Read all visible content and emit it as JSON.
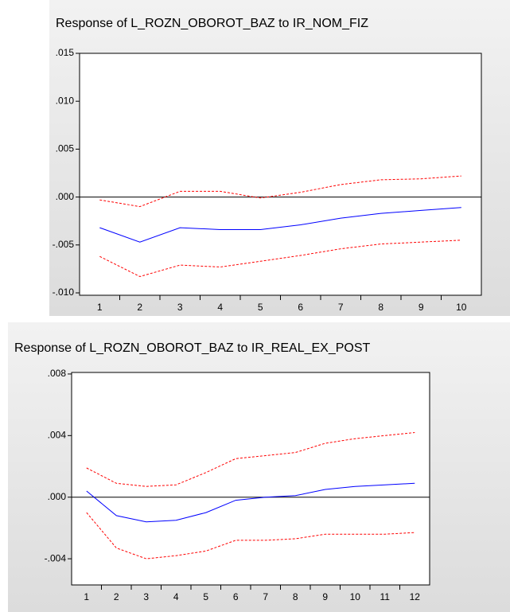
{
  "chart_data": [
    {
      "type": "line",
      "title": "Response of L_ROZN_OBOROT_BAZ to IR_NOM_FIZ",
      "categories": [
        "1",
        "2",
        "3",
        "4",
        "5",
        "6",
        "7",
        "8",
        "9",
        "10"
      ],
      "series": [
        {
          "color": "#ff0000",
          "style": "dashed",
          "values": [
            -0.0003,
            -0.001,
            0.0006,
            0.0006,
            -0.0001,
            0.0005,
            0.0013,
            0.0018,
            0.0019,
            0.0022
          ]
        },
        {
          "color": "#0000ff",
          "style": "solid",
          "values": [
            -0.0032,
            -0.0047,
            -0.0032,
            -0.0034,
            -0.0034,
            -0.0029,
            -0.0022,
            -0.0017,
            -0.0014,
            -0.0011
          ]
        },
        {
          "color": "#ff0000",
          "style": "dashed",
          "values": [
            -0.0062,
            -0.0083,
            -0.0071,
            -0.0073,
            -0.0067,
            -0.0061,
            -0.0054,
            -0.0049,
            -0.0047,
            -0.0045
          ]
        }
      ],
      "ylim": [
        -0.01025,
        0.015
      ],
      "yticks": [
        {
          "value": -0.01,
          "label": "-.010"
        },
        {
          "value": -0.005,
          "label": "-.005"
        },
        {
          "value": 0,
          "label": ".000"
        },
        {
          "value": 0.005,
          "label": ".005"
        },
        {
          "value": 0.01,
          "label": ".010"
        },
        {
          "value": 0.015,
          "label": ".015"
        }
      ],
      "zero_line": true
    },
    {
      "type": "line",
      "title": "Response of L_ROZN_OBOROT_BAZ to IR_REAL_EX_POST",
      "categories": [
        "1",
        "2",
        "3",
        "4",
        "5",
        "6",
        "7",
        "8",
        "9",
        "10",
        "11",
        "12"
      ],
      "series": [
        {
          "color": "#ff0000",
          "style": "dashed",
          "values": [
            0.0019,
            0.0009,
            0.0007,
            0.0008,
            0.0016,
            0.0025,
            0.0027,
            0.0029,
            0.0035,
            0.0038,
            0.004,
            0.0042
          ]
        },
        {
          "color": "#0000ff",
          "style": "solid",
          "values": [
            0.0004,
            -0.0012,
            -0.0016,
            -0.0015,
            -0.001,
            -0.0002,
            0.0,
            0.0001,
            0.0005,
            0.0007,
            0.0008,
            0.0009
          ]
        },
        {
          "color": "#ff0000",
          "style": "dashed",
          "values": [
            -0.001,
            -0.0033,
            -0.004,
            -0.0038,
            -0.0035,
            -0.0028,
            -0.0028,
            -0.0027,
            -0.0024,
            -0.0024,
            -0.0024,
            -0.0023
          ]
        }
      ],
      "ylim": [
        -0.0057,
        0.0081
      ],
      "yticks": [
        {
          "value": -0.004,
          "label": "-.004"
        },
        {
          "value": 0,
          "label": ".000"
        },
        {
          "value": 0.004,
          "label": ".004"
        },
        {
          "value": 0.008,
          "label": ".008"
        }
      ],
      "zero_line": true
    }
  ]
}
